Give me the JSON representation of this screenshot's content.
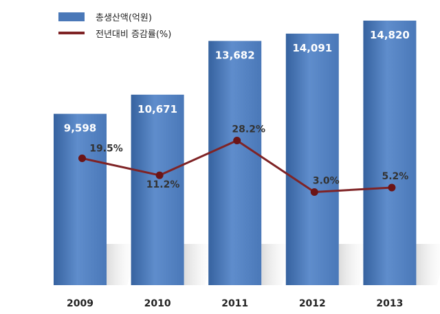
{
  "colors": {
    "bar": "#4a78b8",
    "bar_light": "#5f8dcc",
    "bar_dark": "#36629f",
    "line": "#7f2325",
    "marker": "#6b1416",
    "bar_label": "#ffffff",
    "line_label": "#333333",
    "axis_label": "#222222"
  },
  "legend": {
    "bar_label": "총생산액(억원)",
    "line_label": "전년대비 증감률(%)"
  },
  "chart_data": {
    "type": "bar",
    "categories": [
      "2009",
      "2010",
      "2011",
      "2012",
      "2013"
    ],
    "series": [
      {
        "name": "총생산액(억원)",
        "type": "bar",
        "values": [
          9598,
          10671,
          13682,
          14091,
          14820
        ],
        "labels": [
          "9,598",
          "10,671",
          "13,682",
          "14,091",
          "14,820"
        ]
      },
      {
        "name": "전년대비 증감률(%)",
        "type": "line",
        "values": [
          19.5,
          11.2,
          28.2,
          3.0,
          5.2
        ],
        "labels": [
          "19.5%",
          "11.2%",
          "28.2%",
          "3.0%",
          "5.2%"
        ]
      }
    ],
    "legend_position": "top-left",
    "grid": false
  }
}
